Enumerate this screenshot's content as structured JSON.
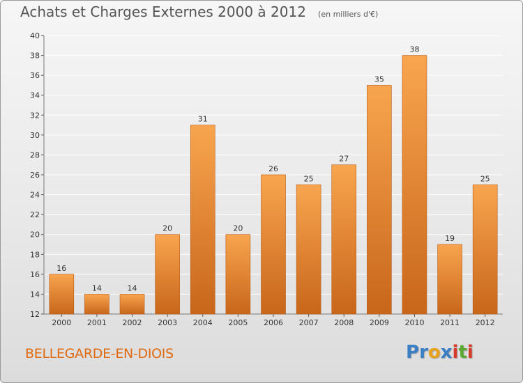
{
  "title": "Achats et Charges Externes 2000 à 2012",
  "subtitle": "(en milliers d'€)",
  "commune": "BELLEGARDE-EN-DIOIS",
  "logo": {
    "text": "Proxiti",
    "letters": [
      {
        "char": "P",
        "color": "#3a7fc4"
      },
      {
        "char": "r",
        "color": "#3a7fc4"
      },
      {
        "char": "o",
        "color": "#e8a21b"
      },
      {
        "char": "x",
        "color": "#3a7fc4"
      },
      {
        "char": "i",
        "color": "#d63a2a"
      },
      {
        "char": "t",
        "color": "#5aa832"
      },
      {
        "char": "i",
        "color": "#d63a2a"
      }
    ]
  },
  "colors": {
    "bar_top": "#f8a54f",
    "bar_bottom": "#c8661a",
    "bar_edge": "#b85a14",
    "grid": "#ffffff",
    "commune_text": "#e06a10"
  },
  "chart_data": {
    "type": "bar",
    "categories": [
      "2000",
      "2001",
      "2002",
      "2003",
      "2004",
      "2005",
      "2006",
      "2007",
      "2008",
      "2009",
      "2010",
      "2011",
      "2012"
    ],
    "values": [
      16,
      14,
      14,
      20,
      31,
      20,
      26,
      25,
      27,
      35,
      38,
      19,
      25
    ],
    "ylim": [
      12,
      40
    ],
    "yticks": [
      12,
      14,
      16,
      18,
      20,
      22,
      24,
      26,
      28,
      30,
      32,
      34,
      36,
      38,
      40
    ],
    "grid": true,
    "legend": "none"
  }
}
